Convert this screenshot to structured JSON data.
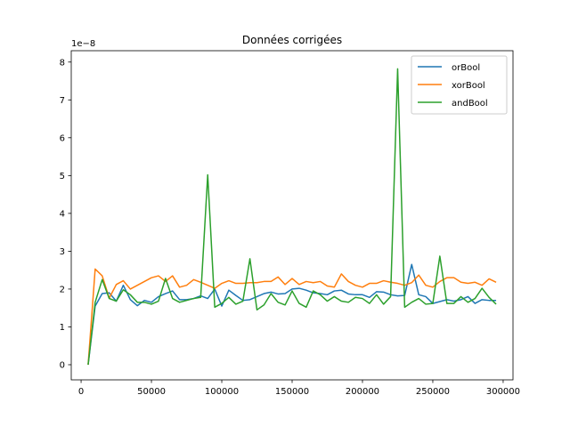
{
  "chart_data": {
    "type": "line",
    "title": "Données corrigées",
    "xlabel": "",
    "ylabel": "",
    "y_offset_label": "1e−8",
    "xlim": [
      -7000,
      307000
    ],
    "ylim": [
      -0.4,
      8.3
    ],
    "x_ticks": [
      0,
      50000,
      100000,
      150000,
      200000,
      250000,
      300000
    ],
    "x_tick_labels": [
      "0",
      "50000",
      "100000",
      "150000",
      "200000",
      "250000",
      "300000"
    ],
    "y_ticks": [
      0,
      1,
      2,
      3,
      4,
      5,
      6,
      7,
      8
    ],
    "y_tick_labels": [
      "0",
      "1",
      "2",
      "3",
      "4",
      "5",
      "6",
      "7",
      "8"
    ],
    "grid": false,
    "legend_position": "top-right",
    "x": [
      5000,
      10000,
      15000,
      20000,
      25000,
      30000,
      35000,
      40000,
      45000,
      50000,
      55000,
      60000,
      65000,
      70000,
      75000,
      80000,
      85000,
      90000,
      95000,
      100000,
      105000,
      110000,
      115000,
      120000,
      125000,
      130000,
      135000,
      140000,
      145000,
      150000,
      155000,
      160000,
      165000,
      170000,
      175000,
      180000,
      185000,
      190000,
      195000,
      200000,
      205000,
      210000,
      215000,
      220000,
      225000,
      230000,
      235000,
      240000,
      245000,
      250000,
      255000,
      260000,
      265000,
      270000,
      275000,
      280000,
      285000,
      290000,
      295000
    ],
    "series": [
      {
        "name": "orBool",
        "color": "#1f77b4",
        "values": [
          0.0,
          1.55,
          1.88,
          1.9,
          1.68,
          2.1,
          1.72,
          1.56,
          1.7,
          1.65,
          1.8,
          1.88,
          1.95,
          1.72,
          1.72,
          1.75,
          1.82,
          1.75,
          2.0,
          1.55,
          1.97,
          1.83,
          1.7,
          1.72,
          1.8,
          1.88,
          1.92,
          1.87,
          1.88,
          2.0,
          2.02,
          1.97,
          1.9,
          1.88,
          1.85,
          1.95,
          1.97,
          1.87,
          1.85,
          1.85,
          1.78,
          1.93,
          1.92,
          1.85,
          1.82,
          1.83,
          2.65,
          1.85,
          1.8,
          1.62,
          1.67,
          1.72,
          1.68,
          1.72,
          1.8,
          1.62,
          1.72,
          1.7,
          1.7
        ]
      },
      {
        "name": "xorBool",
        "color": "#ff7f0e",
        "values": [
          0.0,
          2.53,
          2.35,
          1.76,
          2.12,
          2.22,
          2.0,
          2.1,
          2.2,
          2.3,
          2.35,
          2.2,
          2.35,
          2.05,
          2.1,
          2.25,
          2.18,
          2.1,
          2.02,
          2.15,
          2.22,
          2.15,
          2.15,
          2.17,
          2.17,
          2.2,
          2.2,
          2.32,
          2.12,
          2.28,
          2.12,
          2.2,
          2.17,
          2.2,
          2.08,
          2.05,
          2.4,
          2.2,
          2.1,
          2.05,
          2.15,
          2.15,
          2.22,
          2.18,
          2.15,
          2.1,
          2.17,
          2.37,
          2.1,
          2.05,
          2.2,
          2.3,
          2.3,
          2.18,
          2.15,
          2.18,
          2.1,
          2.27,
          2.18
        ]
      },
      {
        "name": "andBool",
        "color": "#2ca02c",
        "values": [
          0.0,
          1.65,
          2.25,
          1.75,
          1.68,
          1.98,
          1.85,
          1.65,
          1.65,
          1.6,
          1.68,
          2.28,
          1.75,
          1.65,
          1.7,
          1.75,
          1.78,
          5.02,
          1.52,
          1.62,
          1.78,
          1.6,
          1.68,
          2.8,
          1.45,
          1.58,
          1.88,
          1.65,
          1.58,
          1.95,
          1.62,
          1.52,
          1.95,
          1.85,
          1.68,
          1.8,
          1.68,
          1.65,
          1.78,
          1.75,
          1.62,
          1.85,
          1.6,
          1.8,
          7.82,
          1.52,
          1.65,
          1.75,
          1.6,
          1.62,
          2.87,
          1.62,
          1.62,
          1.8,
          1.65,
          1.75,
          2.02,
          1.78,
          1.6
        ]
      }
    ]
  }
}
